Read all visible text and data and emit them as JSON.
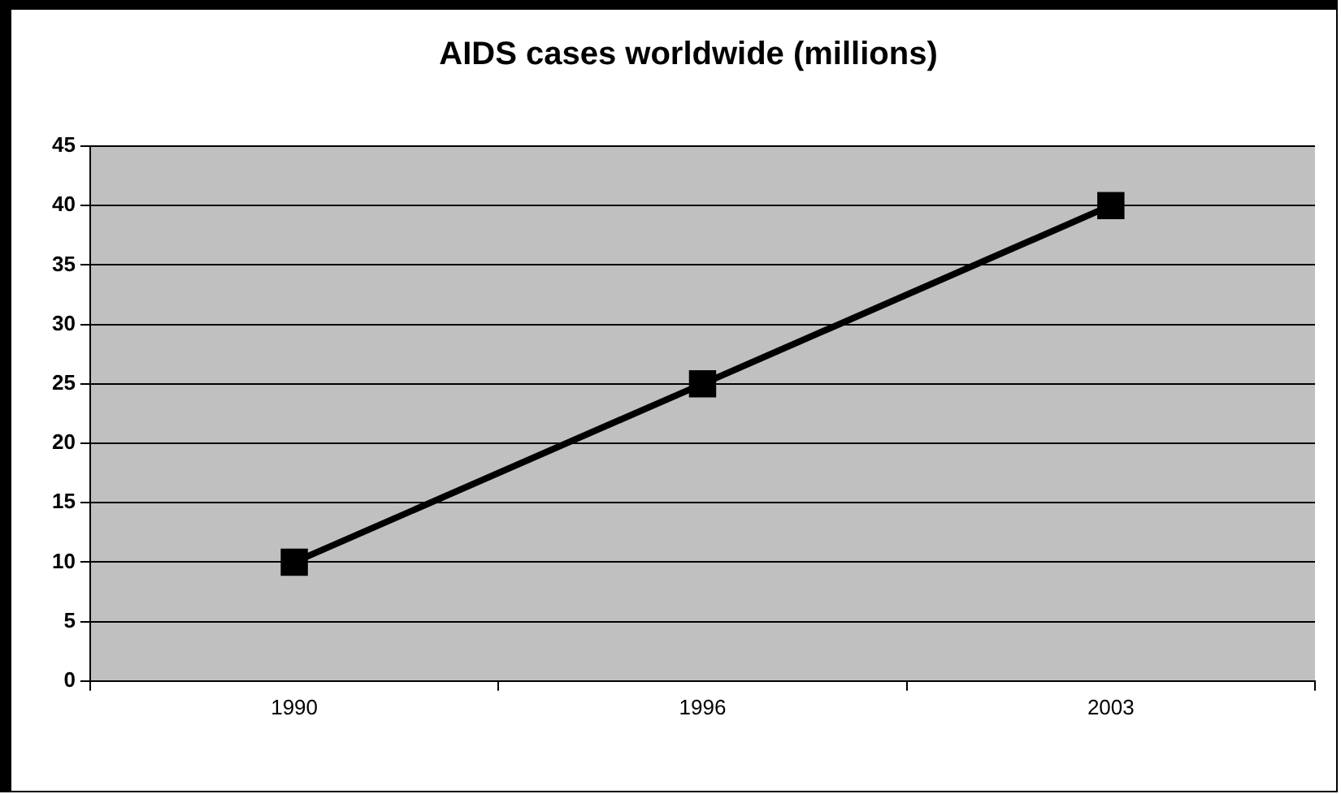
{
  "chart_data": {
    "type": "line",
    "title": "AIDS cases worldwide (millions)",
    "categories": [
      "1990",
      "1996",
      "2003"
    ],
    "series": [
      {
        "color": "#000000",
        "values": [
          10,
          25,
          40
        ]
      }
    ],
    "ylim": [
      0,
      45
    ],
    "yticks": [
      0,
      5,
      10,
      15,
      20,
      25,
      30,
      35,
      40,
      45
    ],
    "grid": "y",
    "legend": false,
    "marker": "square",
    "line_style": "solid"
  }
}
